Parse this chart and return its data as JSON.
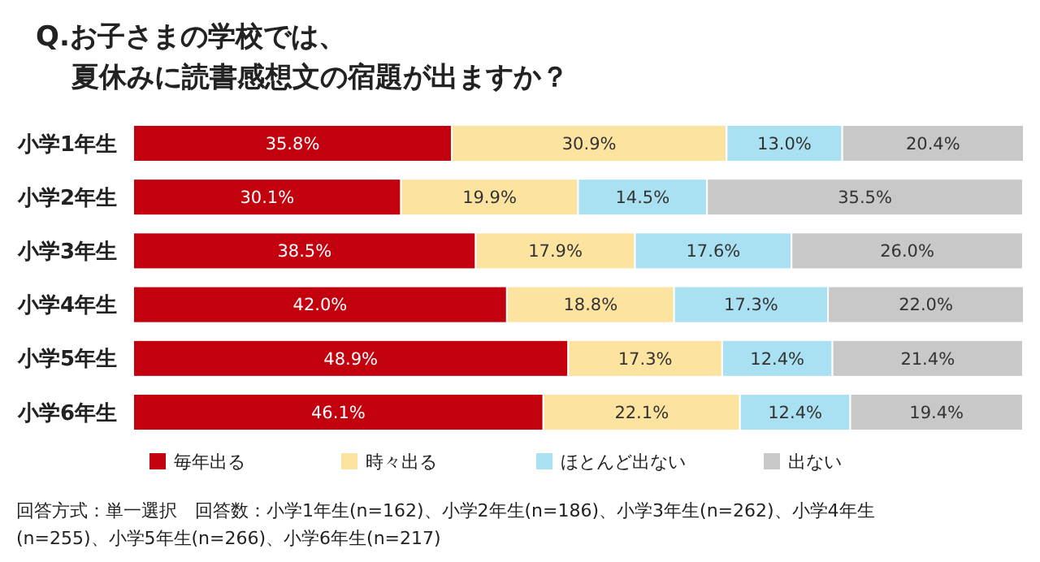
{
  "chart_data": {
    "type": "bar",
    "orientation": "horizontal",
    "stacked": true,
    "title": "Q.お子さまの学校では、夏休みに読書感想文の宿題が出ますか？",
    "categories": [
      "小学1年生",
      "小学2年生",
      "小学3年生",
      "小学4年生",
      "小学5年生",
      "小学6年生"
    ],
    "series": [
      {
        "name": "毎年出る",
        "color": "#c3000d",
        "values": [
          35.8,
          30.1,
          38.5,
          42.0,
          48.9,
          46.1
        ],
        "value_labels": [
          "35.8%",
          "30.1%",
          "38.5%",
          "42.0%",
          "48.9%",
          "46.1%"
        ]
      },
      {
        "name": "時々出る",
        "color": "#fde3a0",
        "values": [
          30.9,
          19.9,
          17.9,
          18.8,
          17.3,
          22.1
        ],
        "value_labels": [
          "30.9%",
          "19.9%",
          "17.9%",
          "18.8%",
          "17.3%",
          "22.1%"
        ]
      },
      {
        "name": "ほとんど出ない",
        "color": "#a9e1f2",
        "values": [
          13.0,
          14.5,
          17.6,
          17.3,
          12.4,
          12.4
        ],
        "value_labels": [
          "13.0%",
          "14.5%",
          "17.6%",
          "17.3%",
          "12.4%",
          "12.4%"
        ]
      },
      {
        "name": "出ない",
        "color": "#c8c8c8",
        "values": [
          20.4,
          35.5,
          26.0,
          22.0,
          21.4,
          19.4
        ],
        "value_labels": [
          "20.4%",
          "35.5%",
          "26.0%",
          "22.0%",
          "21.4%",
          "19.4%"
        ]
      }
    ],
    "legend": "bottom",
    "annotations": [
      "回答方式：単一選択　回答数：小学1年生(n=162)、小学2年生(n=186)、小学3年生(n=262)、小学4年生\n(n=255)、小学5年生(n=266)、小学6年生(n=217)"
    ]
  }
}
